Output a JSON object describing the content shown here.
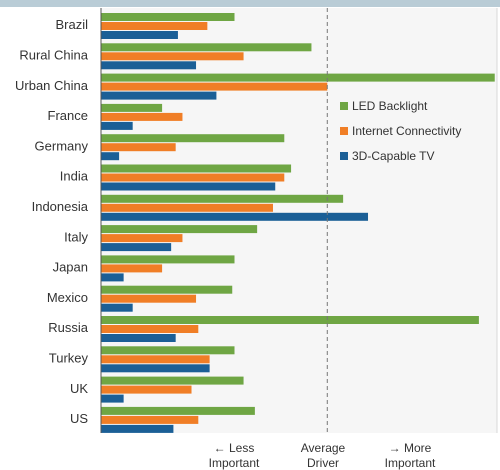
{
  "chart_data": {
    "type": "bar",
    "orientation": "horizontal",
    "title": "",
    "xlabel": "",
    "ylabel": "",
    "categories": [
      "Brazil",
      "Rural China",
      "Urban China",
      "France",
      "Germany",
      "India",
      "Indonesia",
      "Italy",
      "Japan",
      "Mexico",
      "Russia",
      "Turkey",
      "UK",
      "US"
    ],
    "series": [
      {
        "name": "LED Backlight",
        "color": "#6fa644",
        "values": [
          0.59,
          0.93,
          1.74,
          0.27,
          0.81,
          0.84,
          1.07,
          0.69,
          0.59,
          0.58,
          1.67,
          0.59,
          0.63,
          0.68
        ]
      },
      {
        "name": "Internet Connectivity",
        "color": "#f07e26",
        "values": [
          0.47,
          0.63,
          1.0,
          0.36,
          0.33,
          0.81,
          0.76,
          0.36,
          0.27,
          0.42,
          0.43,
          0.48,
          0.4,
          0.43
        ]
      },
      {
        "name": "3D-Capable TV",
        "color": "#1b5f96",
        "values": [
          0.34,
          0.42,
          0.51,
          0.14,
          0.08,
          0.77,
          1.18,
          0.31,
          0.1,
          0.14,
          0.33,
          0.48,
          0.1,
          0.32
        ]
      }
    ],
    "xlim": [
      0,
      1.75
    ],
    "reference_line": {
      "value": 1.0,
      "style": "dashed"
    },
    "legend_position": "right",
    "grid": false,
    "axis_notes": {
      "left": [
        "←  Less",
        "Important"
      ],
      "center": [
        "Average",
        "Driver"
      ],
      "right": [
        "→   More",
        "Important"
      ]
    }
  }
}
